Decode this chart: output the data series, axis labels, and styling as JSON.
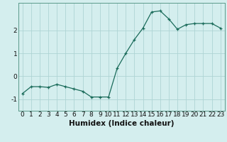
{
  "x": [
    0,
    1,
    2,
    3,
    4,
    5,
    6,
    7,
    8,
    9,
    10,
    11,
    12,
    13,
    14,
    15,
    16,
    17,
    18,
    19,
    20,
    21,
    22,
    23
  ],
  "y": [
    -0.75,
    -0.45,
    -0.45,
    -0.48,
    -0.35,
    -0.45,
    -0.55,
    -0.65,
    -0.9,
    -0.9,
    -0.9,
    0.35,
    1.0,
    1.6,
    2.1,
    2.8,
    2.85,
    2.5,
    2.05,
    2.25,
    2.3,
    2.3,
    2.3,
    2.1
  ],
  "xlabel": "Humidex (Indice chaleur)",
  "xlim": [
    -0.5,
    23.5
  ],
  "ylim": [
    -1.5,
    3.2
  ],
  "yticks": [
    -1,
    0,
    1,
    2
  ],
  "bg_color": "#d4eeee",
  "grid_color": "#aed4d4",
  "line_color": "#1a6b5a",
  "marker_color": "#1a6b5a",
  "xlabel_fontsize": 7.5,
  "tick_fontsize": 6.5
}
